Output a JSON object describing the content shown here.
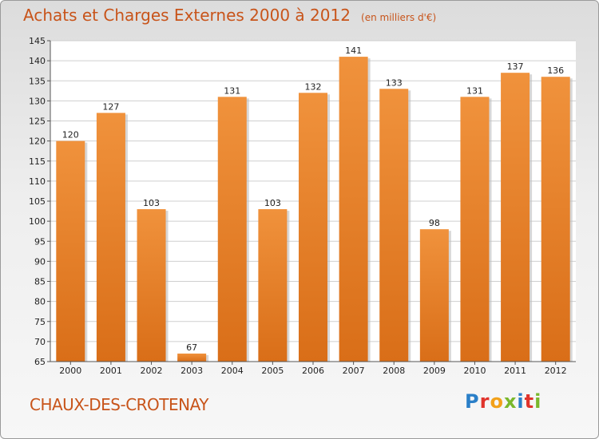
{
  "chart_data": {
    "type": "bar",
    "title": "Achats et Charges Externes 2000 à 2012",
    "subtitle": "(en milliers d'€)",
    "categories": [
      "2000",
      "2001",
      "2002",
      "2003",
      "2004",
      "2005",
      "2006",
      "2007",
      "2008",
      "2009",
      "2010",
      "2011",
      "2012"
    ],
    "values": [
      120,
      127,
      103,
      67,
      131,
      103,
      132,
      141,
      133,
      98,
      131,
      137,
      136
    ],
    "data_labels": [
      "120",
      "127",
      "103",
      "67",
      "131",
      "103",
      "132",
      "141",
      "133",
      "98",
      "131",
      "137",
      "136"
    ],
    "ylim": [
      65,
      145
    ],
    "y_ticks": [
      "65",
      "70",
      "75",
      "80",
      "85",
      "90",
      "95",
      "100",
      "105",
      "110",
      "115",
      "120",
      "125",
      "130",
      "135",
      "140",
      "145"
    ],
    "grid": true,
    "bar_color": "#f0923c",
    "bar_color_dark": "#d96e18"
  },
  "footer": {
    "city": "CHAUX-DES-CROTENAY",
    "logo_letters": [
      "P",
      "r",
      "o",
      "x",
      "i",
      "t",
      "i"
    ],
    "logo_colors": [
      "#2a7fc8",
      "#e0342c",
      "#f2a11a",
      "#7ab82c",
      "#2a7fc8",
      "#e0342c",
      "#7ab82c"
    ]
  },
  "colors": {
    "title": "#c8541a",
    "grid": "#cfcfcf"
  }
}
